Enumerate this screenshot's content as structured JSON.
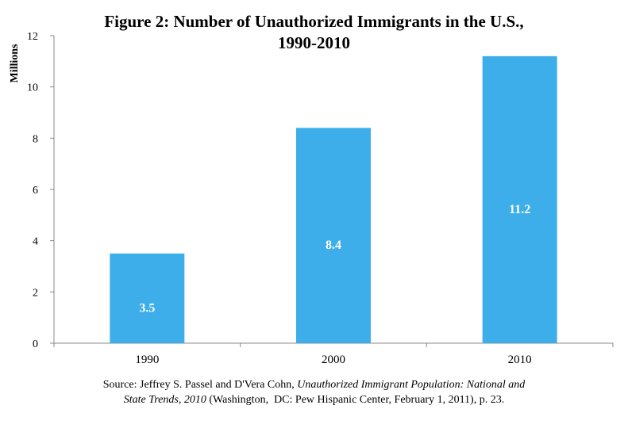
{
  "chart_data": {
    "type": "bar",
    "title_line1": "Figure 2: Number of Unauthorized Immigrants in the U.S.,",
    "title_line2": "1990-2010",
    "ylabel": "Millions",
    "xlabel": "",
    "categories": [
      "1990",
      "2000",
      "2010"
    ],
    "values": [
      3.5,
      8.4,
      11.2
    ],
    "data_labels": [
      "3.5",
      "8.4",
      "11.2"
    ],
    "ylim": [
      0,
      12
    ],
    "yticks": [
      0,
      2,
      4,
      6,
      8,
      10,
      12
    ],
    "grid": false,
    "legend": "none",
    "bar_color": "#3daee9",
    "axis_color": "#888888"
  },
  "source": {
    "line1_prefix": "Source: Jeffrey S. Passel and D'Vera Cohn, ",
    "line1_italic": "Unauthorized Immigrant Population: National and",
    "line2_italic": "State Trends, 2010",
    "line2_suffix": " (Washington,  DC: Pew Hispanic Center, February 1, 2011), p. 23."
  }
}
